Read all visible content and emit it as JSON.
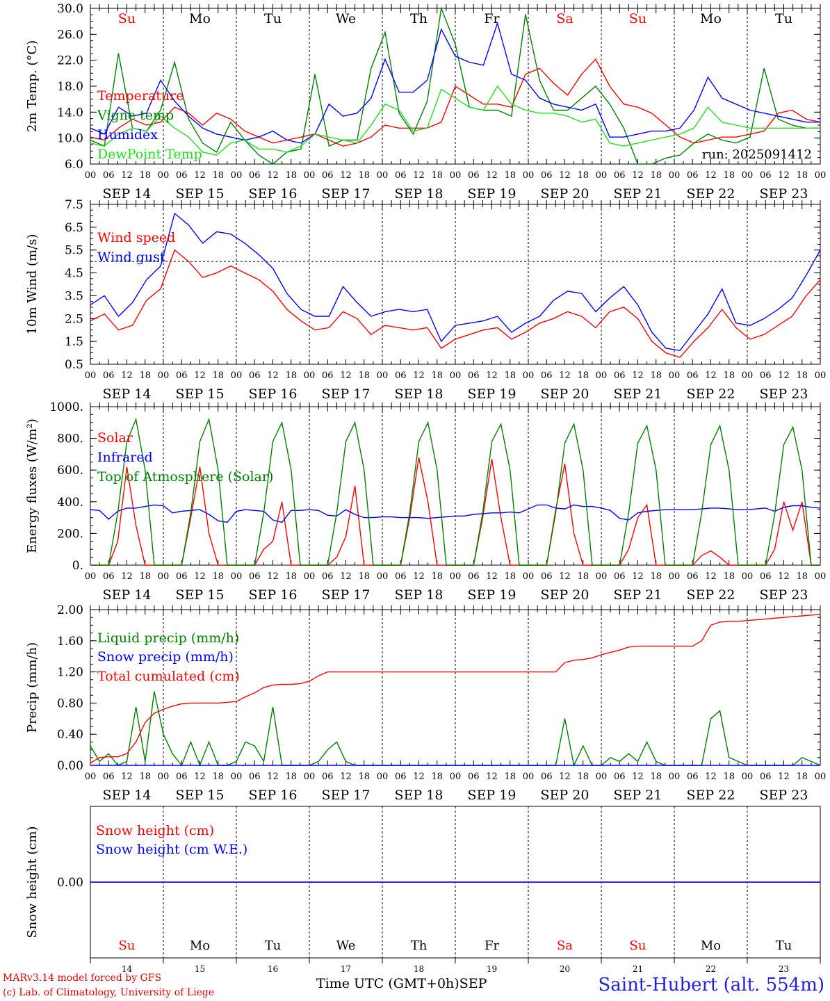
{
  "run_label": "run: 2025091412",
  "footer": {
    "credit_line1": "MARv3.14 model forced by GFS",
    "credit_line2": "(c) Lab. of Climatology, University of Liege",
    "time_axis_label": "Time UTC (GMT+0h)",
    "month_label": "SEP",
    "station": "Saint-Hubert (alt. 554m)"
  },
  "days": {
    "abbr": [
      "Su",
      "Mo",
      "Tu",
      "We",
      "Th",
      "Fr",
      "Sa",
      "Su",
      "Mo",
      "Tu"
    ],
    "weekend": [
      true,
      false,
      false,
      false,
      false,
      false,
      true,
      true,
      false,
      false
    ],
    "dates": [
      "SEP 14",
      "SEP 15",
      "SEP 16",
      "SEP 17",
      "SEP 18",
      "SEP 19",
      "SEP 20",
      "SEP 21",
      "SEP 22",
      "SEP 23"
    ],
    "numbers": [
      "14",
      "15",
      "16",
      "17",
      "18",
      "19",
      "20",
      "21",
      "22",
      "23"
    ],
    "hour_ticks": [
      "00",
      "06",
      "12",
      "18"
    ]
  },
  "colors": {
    "red": "#ff0000",
    "blue": "#0000ff",
    "green": "#008000",
    "lightgreen": "#22dd22",
    "axis": "#000000",
    "weekend": "#ff0000"
  },
  "chart_data": [
    {
      "type": "line",
      "ylabel": "2m Temp. (°C)",
      "ylim": [
        6,
        32
      ],
      "yticks": [
        "6.0",
        "10.0",
        "14.0",
        "18.0",
        "22.0",
        "26.0",
        "30.0"
      ],
      "hours_step": 6,
      "series": [
        {
          "name": "Temperature",
          "color": "#ff0000",
          "values": [
            10.5,
            10,
            12,
            13.5,
            12.5,
            13,
            15.5,
            14.5,
            12.5,
            14.5,
            13.5,
            11.5,
            10.5,
            9.5,
            10,
            10.5,
            11,
            10,
            9,
            9.5,
            10.5,
            12.5,
            12,
            12,
            12,
            13,
            19,
            17.5,
            16,
            16,
            15.5,
            21,
            22,
            19.5,
            17.5,
            21,
            23.5,
            19,
            16,
            15.5,
            14.5,
            12.5,
            10.5,
            9.5,
            10,
            10.5,
            10.5,
            11,
            11.5,
            14.5,
            15,
            13.5,
            13
          ]
        },
        {
          "name": "Vigne temp",
          "color": "#008000",
          "values": [
            10,
            9,
            24.5,
            12,
            11.5,
            15,
            23,
            13.5,
            9.5,
            8,
            13,
            10,
            7.5,
            6,
            8,
            8.5,
            21,
            9,
            10,
            10,
            22,
            28,
            14.5,
            11,
            16.5,
            32,
            26,
            15.5,
            15,
            15,
            14,
            31,
            20,
            15,
            15,
            17,
            19,
            16,
            12,
            6,
            6,
            7,
            7.5,
            9.5,
            11,
            10,
            9.5,
            10.5,
            22,
            13.5,
            12.5,
            12,
            12
          ]
        },
        {
          "name": "Humidex",
          "color": "#0000ff",
          "values": [
            12,
            11,
            15.5,
            14,
            14.5,
            20,
            16.5,
            14,
            12,
            11,
            10.5,
            10,
            10.5,
            11.5,
            10,
            9.5,
            11,
            16,
            14,
            14.5,
            17,
            23.5,
            18,
            18,
            20,
            28.5,
            24,
            23,
            22.5,
            29.5,
            21,
            20,
            17,
            16,
            15.5,
            15,
            16,
            10.5,
            10.5,
            11,
            11.5,
            11.5,
            12,
            15,
            20.5,
            17,
            16,
            15,
            14.5,
            14,
            13.5,
            13,
            13
          ]
        },
        {
          "name": "DewPoint Temp",
          "color": "#22dd22",
          "values": [
            9.5,
            9,
            11,
            12,
            11.5,
            14,
            12,
            10.5,
            8,
            7.5,
            9.5,
            10,
            8.5,
            8.5,
            8,
            9,
            11,
            10.5,
            10,
            9.5,
            12.5,
            16,
            15,
            11.5,
            12,
            18.5,
            17,
            15.5,
            15,
            19,
            16,
            15,
            14.5,
            14.5,
            14,
            13,
            13.5,
            9.5,
            9,
            9.5,
            10,
            10.5,
            11,
            12,
            15.5,
            13,
            12.5,
            12,
            12,
            12,
            12,
            12,
            12
          ]
        }
      ]
    },
    {
      "type": "line",
      "ylabel": "10m Wind (m/s)",
      "ylim": [
        0.5,
        7.5
      ],
      "yticks": [
        "0.5",
        "1.5",
        "2.5",
        "3.5",
        "4.5",
        "5.5",
        "6.5",
        "7.5"
      ],
      "reference_line": 5.0,
      "hours_step": 6,
      "series": [
        {
          "name": "Wind speed",
          "color": "#ff0000",
          "values": [
            2.4,
            2.7,
            2,
            2.2,
            3.3,
            3.8,
            5.5,
            5,
            4.3,
            4.5,
            4.8,
            4.5,
            4.2,
            3.7,
            2.9,
            2.4,
            2,
            2.1,
            2.8,
            2.5,
            1.8,
            2.2,
            2.1,
            2,
            2.1,
            1.2,
            1.6,
            1.8,
            2,
            2.1,
            1.6,
            1.9,
            2.3,
            2.5,
            2.8,
            2.6,
            2.1,
            2.8,
            3.0,
            2.5,
            1.5,
            1,
            0.8,
            1.5,
            2.1,
            2.9,
            2.1,
            1.6,
            1.8,
            2.2,
            2.6,
            3.5,
            4.2
          ]
        },
        {
          "name": "Wind gust",
          "color": "#0000ff",
          "values": [
            3.1,
            3.5,
            2.6,
            3.2,
            4.2,
            4.8,
            7.1,
            6.6,
            5.8,
            6.3,
            6.2,
            5.8,
            5.3,
            4.7,
            3.6,
            2.9,
            2.6,
            2.6,
            3.9,
            3.2,
            2.6,
            2.8,
            2.9,
            2.8,
            2.9,
            1.5,
            2.2,
            2.3,
            2.4,
            2.6,
            1.9,
            2.3,
            2.6,
            3.3,
            3.7,
            3.6,
            2.8,
            3.4,
            3.9,
            3.1,
            1.9,
            1.2,
            1.1,
            1.9,
            2.7,
            3.8,
            2.3,
            2.2,
            2.5,
            2.9,
            3.4,
            4.4,
            5.5
          ]
        }
      ]
    },
    {
      "type": "line",
      "ylabel": "Energy fluxes (W/m²)",
      "ylim": [
        0,
        1000
      ],
      "yticks": [
        "0.",
        "200.",
        "400.",
        "600.",
        "800.",
        "1000."
      ],
      "hours_step": 3,
      "series": [
        {
          "name": "Solar",
          "color": "#ff0000",
          "values": [
            0,
            0,
            0,
            150,
            620,
            250,
            0,
            0,
            0,
            0,
            0,
            300,
            620,
            200,
            0,
            0,
            0,
            0,
            0,
            100,
            150,
            400,
            0,
            0,
            0,
            0,
            0,
            50,
            180,
            500,
            0,
            0,
            0,
            0,
            0,
            300,
            680,
            400,
            0,
            0,
            0,
            0,
            0,
            300,
            670,
            300,
            0,
            0,
            0,
            0,
            0,
            350,
            640,
            200,
            0,
            0,
            0,
            0,
            0,
            100,
            300,
            380,
            0,
            0,
            0,
            0,
            0,
            60,
            90,
            50,
            0,
            0,
            0,
            0,
            0,
            100,
            400,
            220,
            400,
            0,
            0
          ]
        },
        {
          "name": "Infrared",
          "color": "#0000ff",
          "values": [
            350,
            345,
            290,
            340,
            360,
            360,
            370,
            380,
            375,
            330,
            340,
            345,
            350,
            320,
            280,
            270,
            340,
            350,
            345,
            340,
            285,
            270,
            345,
            345,
            350,
            345,
            315,
            310,
            350,
            320,
            300,
            300,
            305,
            305,
            300,
            300,
            300,
            295,
            300,
            305,
            310,
            310,
            320,
            325,
            330,
            330,
            335,
            330,
            355,
            380,
            380,
            360,
            355,
            380,
            370,
            370,
            360,
            345,
            295,
            285,
            330,
            340,
            345,
            350,
            350,
            350,
            350,
            355,
            360,
            360,
            355,
            350,
            350,
            355,
            360,
            340,
            365,
            375,
            375,
            365,
            360
          ]
        },
        {
          "name": "Top of Atmosphere (Solar)",
          "color": "#008000",
          "values": [
            0,
            0,
            0,
            330,
            780,
            920,
            600,
            0,
            0,
            0,
            0,
            330,
            780,
            920,
            600,
            0,
            0,
            0,
            0,
            330,
            780,
            900,
            600,
            0,
            0,
            0,
            0,
            330,
            780,
            900,
            600,
            0,
            0,
            0,
            0,
            330,
            780,
            900,
            600,
            0,
            0,
            0,
            0,
            330,
            780,
            890,
            600,
            0,
            0,
            0,
            0,
            330,
            770,
            890,
            600,
            0,
            0,
            0,
            0,
            330,
            770,
            880,
            600,
            0,
            0,
            0,
            0,
            330,
            760,
            880,
            600,
            0,
            0,
            0,
            0,
            320,
            760,
            870,
            600,
            0,
            0
          ]
        }
      ]
    },
    {
      "type": "line",
      "ylabel": "Precip (mm/h)",
      "ylim": [
        0,
        2
      ],
      "yticks": [
        "0.00",
        "0.40",
        "0.80",
        "1.20",
        "1.60",
        "2.00"
      ],
      "hours_step": 3,
      "series": [
        {
          "name": "Liquid precip (mm/h)",
          "color": "#008000",
          "values": [
            0.25,
            0.05,
            0.15,
            0,
            0.05,
            0.75,
            0.05,
            0.95,
            0.4,
            0.15,
            0,
            0.3,
            0,
            0.3,
            0,
            0,
            0.05,
            0.3,
            0.25,
            0.05,
            0.75,
            0,
            0,
            0,
            0,
            0.05,
            0.2,
            0.3,
            0.05,
            0,
            0,
            0,
            0,
            0,
            0,
            0,
            0,
            0,
            0,
            0,
            0,
            0,
            0,
            0,
            0,
            0,
            0,
            0,
            0,
            0,
            0,
            0,
            0.6,
            0,
            0.25,
            0,
            0,
            0.1,
            0.05,
            0.15,
            0.05,
            0.3,
            0.05,
            0,
            0,
            0,
            0,
            0,
            0.6,
            0.7,
            0.1,
            0.05,
            0,
            0,
            0,
            0,
            0,
            0,
            0.1,
            0.05,
            0
          ]
        },
        {
          "name": "Snow precip (mm/h)",
          "color": "#0000ff",
          "values": [
            0,
            0,
            0,
            0,
            0,
            0,
            0,
            0,
            0,
            0,
            0,
            0,
            0,
            0,
            0,
            0,
            0,
            0,
            0,
            0,
            0,
            0,
            0,
            0,
            0,
            0,
            0,
            0,
            0,
            0,
            0,
            0,
            0,
            0,
            0,
            0,
            0,
            0,
            0,
            0,
            0,
            0,
            0,
            0,
            0,
            0,
            0,
            0,
            0,
            0,
            0,
            0,
            0,
            0,
            0,
            0,
            0,
            0,
            0,
            0,
            0,
            0,
            0,
            0,
            0,
            0,
            0,
            0,
            0,
            0,
            0,
            0,
            0,
            0,
            0,
            0,
            0,
            0,
            0,
            0,
            0
          ]
        },
        {
          "name": "Total cumulated (cm)",
          "color": "#ff0000",
          "values": [
            0.03,
            0.1,
            0.11,
            0.11,
            0.15,
            0.3,
            0.55,
            0.67,
            0.72,
            0.76,
            0.79,
            0.8,
            0.8,
            0.8,
            0.8,
            0.81,
            0.82,
            0.88,
            0.93,
            1.0,
            1.03,
            1.04,
            1.04,
            1.05,
            1.08,
            1.15,
            1.2,
            1.2,
            1.2,
            1.2,
            1.2,
            1.2,
            1.2,
            1.2,
            1.2,
            1.2,
            1.2,
            1.2,
            1.2,
            1.2,
            1.2,
            1.2,
            1.2,
            1.2,
            1.2,
            1.2,
            1.2,
            1.2,
            1.2,
            1.2,
            1.2,
            1.2,
            1.32,
            1.35,
            1.36,
            1.38,
            1.42,
            1.45,
            1.48,
            1.52,
            1.53,
            1.53,
            1.53,
            1.53,
            1.53,
            1.53,
            1.53,
            1.6,
            1.8,
            1.84,
            1.85,
            1.85,
            1.86,
            1.87,
            1.88,
            1.89,
            1.9,
            1.91,
            1.92,
            1.93,
            1.94
          ]
        }
      ]
    },
    {
      "type": "line",
      "ylabel": "Snow height (cm)",
      "ylim": [
        -1,
        1
      ],
      "yticks": [
        "0.00"
      ],
      "hours_step": 240,
      "series": [
        {
          "name": "Snow height (cm)",
          "color": "#ff0000",
          "values": [
            0,
            0
          ]
        },
        {
          "name": "Snow height (cm W.E.)",
          "color": "#0000ff",
          "values": [
            0,
            0
          ]
        }
      ]
    }
  ]
}
